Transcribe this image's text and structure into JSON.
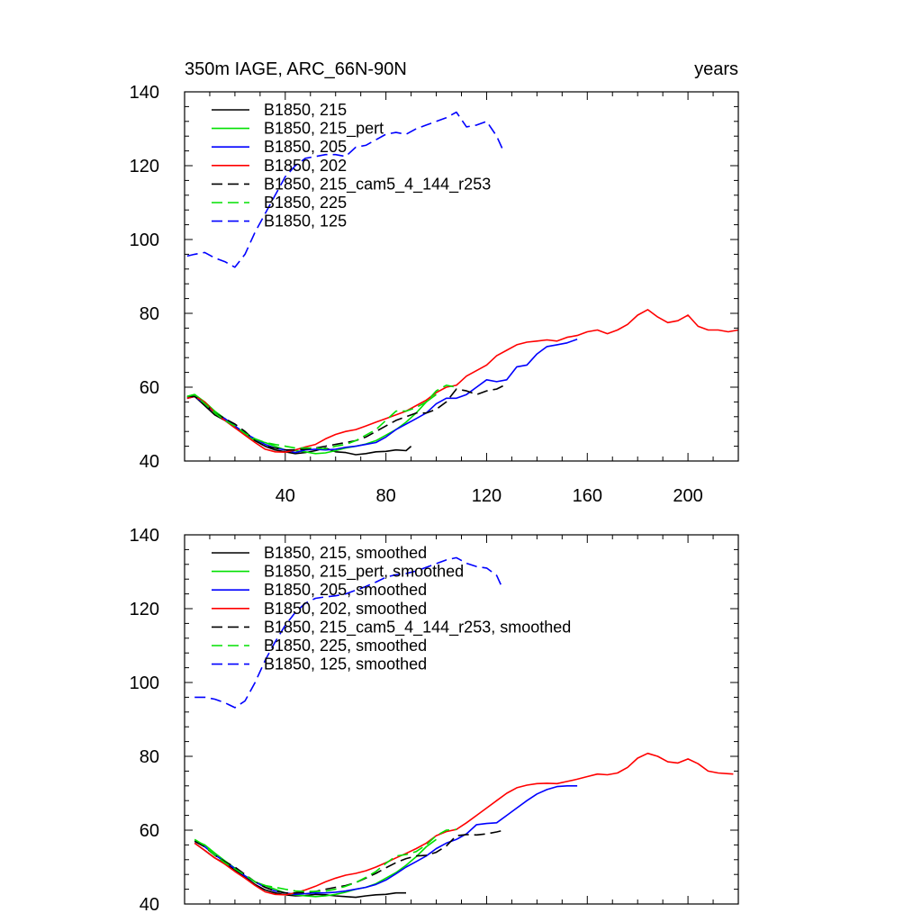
{
  "chart_data": [
    {
      "type": "line",
      "title_left": "350m IAGE, ARC_66N-90N",
      "title_right": "years",
      "xlim": [
        0,
        220
      ],
      "ylim": [
        40,
        140
      ],
      "xticks": [
        40,
        80,
        120,
        160,
        200
      ],
      "yticks": [
        40,
        60,
        80,
        100,
        120,
        140
      ],
      "show_xtick_labels": true,
      "series": [
        {
          "name": "B1850, 215",
          "color": "#000000",
          "dash": "solid",
          "x": [
            1,
            4,
            8,
            12,
            16,
            20,
            24,
            28,
            32,
            36,
            40,
            44,
            48,
            52,
            56,
            60,
            64,
            68,
            72,
            76,
            80,
            84,
            88,
            90
          ],
          "y": [
            57,
            57.5,
            55,
            52.5,
            51,
            49,
            47.5,
            45.5,
            44,
            43,
            42.5,
            42,
            42.3,
            42.8,
            43.5,
            42.5,
            42.3,
            41.7,
            42,
            42.5,
            42.6,
            43,
            42.8,
            44
          ]
        },
        {
          "name": "B1850, 215_pert",
          "color": "#00e000",
          "dash": "solid",
          "x": [
            1,
            4,
            8,
            12,
            16,
            20,
            24,
            28,
            32,
            36,
            40,
            44,
            48,
            52,
            56,
            60,
            64,
            68,
            72,
            76,
            80,
            84,
            88,
            92,
            96,
            100
          ],
          "y": [
            57.5,
            58,
            56,
            53.5,
            51.5,
            49.5,
            47.5,
            45.5,
            45,
            44,
            43,
            42.8,
            42.5,
            42,
            42.2,
            42.8,
            43.5,
            44,
            44.6,
            45.5,
            47,
            48.5,
            50.5,
            53,
            56,
            58
          ]
        },
        {
          "name": "B1850, 205",
          "color": "#0000ff",
          "dash": "solid",
          "x": [
            1,
            4,
            8,
            12,
            16,
            20,
            24,
            28,
            32,
            36,
            40,
            44,
            48,
            52,
            56,
            60,
            64,
            68,
            72,
            76,
            80,
            84,
            88,
            92,
            96,
            100,
            104,
            108,
            112,
            116,
            120,
            124,
            128,
            132,
            136,
            140,
            144,
            148,
            152,
            156
          ],
          "y": [
            57,
            57.5,
            55.5,
            53,
            51.5,
            49.5,
            47.5,
            46,
            44.5,
            43.5,
            43,
            42.3,
            43,
            43.2,
            43,
            43.2,
            43.7,
            44,
            44.5,
            45,
            46.5,
            48.5,
            50,
            51.5,
            53,
            55.5,
            57,
            57,
            58,
            60,
            62,
            61.5,
            62,
            65.5,
            66,
            69,
            71,
            71.5,
            72,
            73
          ]
        },
        {
          "name": "B1850, 202",
          "color": "#ff0000",
          "dash": "solid",
          "x": [
            1,
            4,
            8,
            12,
            16,
            20,
            24,
            28,
            32,
            36,
            40,
            44,
            48,
            52,
            56,
            60,
            64,
            68,
            72,
            76,
            80,
            84,
            88,
            92,
            96,
            100,
            104,
            108,
            112,
            116,
            120,
            124,
            128,
            132,
            136,
            140,
            144,
            148,
            152,
            156,
            160,
            164,
            168,
            172,
            176,
            180,
            184,
            188,
            192,
            196,
            200,
            204,
            208,
            212,
            216,
            220
          ],
          "y": [
            57,
            57.5,
            56,
            53,
            51,
            49,
            47,
            45,
            43.2,
            42.5,
            42.4,
            43,
            43.8,
            44.5,
            46,
            47.2,
            48,
            48.5,
            49.5,
            50.5,
            51.5,
            52.5,
            53.5,
            55,
            56.5,
            58.5,
            60,
            60.5,
            63,
            64.5,
            66,
            68.5,
            70,
            71.5,
            72.2,
            72.5,
            72.8,
            72.5,
            73.5,
            74,
            75,
            75.5,
            74.5,
            75.5,
            77,
            79.5,
            81,
            79,
            77.5,
            78,
            79.5,
            76.5,
            75.5,
            75.5,
            75,
            75.5
          ]
        },
        {
          "name": "B1850, 215_cam5_4_144_r253",
          "color": "#000000",
          "dash": "dashed",
          "x": [
            1,
            4,
            8,
            12,
            16,
            20,
            24,
            28,
            32,
            36,
            40,
            44,
            48,
            52,
            56,
            60,
            64,
            68,
            72,
            76,
            80,
            84,
            88,
            92,
            96,
            100,
            104,
            108,
            112,
            116,
            120,
            124,
            127
          ],
          "y": [
            57.5,
            57.5,
            55.5,
            53,
            51.5,
            50,
            48,
            45.5,
            44,
            43.5,
            43,
            43,
            43.2,
            43.5,
            44,
            44.5,
            45,
            45.5,
            46.5,
            48,
            49.5,
            51,
            52,
            53,
            53,
            54,
            56,
            59.5,
            59,
            58,
            59,
            59.5,
            60.5
          ]
        },
        {
          "name": "B1850, 225",
          "color": "#00e000",
          "dash": "dashed",
          "x": [
            1,
            4,
            8,
            12,
            16,
            20,
            24,
            28,
            32,
            36,
            40,
            44,
            48,
            52,
            56,
            60,
            64,
            68,
            72,
            76,
            80,
            84,
            88,
            92,
            96,
            100,
            104,
            108
          ],
          "y": [
            57.5,
            58,
            55.5,
            53,
            51,
            49.5,
            47.5,
            46,
            45,
            44.5,
            44,
            43.5,
            43.5,
            43.5,
            43.3,
            44,
            44.5,
            45.5,
            47,
            48.5,
            51,
            53.5,
            53.5,
            54.5,
            56,
            59,
            60.5,
            60
          ]
        },
        {
          "name": "B1850, 125",
          "color": "#0000ff",
          "dash": "dashed",
          "x": [
            1,
            4,
            8,
            12,
            16,
            20,
            24,
            28,
            32,
            36,
            40,
            44,
            48,
            52,
            56,
            60,
            64,
            68,
            72,
            76,
            80,
            84,
            88,
            92,
            96,
            100,
            104,
            108,
            112,
            116,
            120,
            124,
            127
          ],
          "y": [
            95.5,
            96,
            96.5,
            95,
            94,
            92.5,
            96,
            102,
            107,
            112,
            117,
            120,
            122,
            122.5,
            123,
            123,
            122.5,
            125,
            125.5,
            127,
            128.5,
            129,
            128.5,
            130,
            131,
            132,
            133,
            134.5,
            130.5,
            131,
            132,
            128,
            123.5
          ]
        }
      ]
    },
    {
      "type": "line",
      "title_left": "",
      "title_right": "",
      "xlim": [
        0,
        220
      ],
      "ylim": [
        40,
        140
      ],
      "xticks": [
        40,
        80,
        120,
        160,
        200
      ],
      "yticks": [
        40,
        60,
        80,
        100,
        120,
        140
      ],
      "show_xtick_labels": false,
      "series": [
        {
          "name": "B1850, 215, smoothed",
          "color": "#000000",
          "dash": "solid",
          "x": [
            4,
            8,
            12,
            16,
            20,
            24,
            28,
            32,
            36,
            40,
            44,
            48,
            52,
            56,
            60,
            64,
            68,
            72,
            76,
            80,
            84,
            88
          ],
          "y": [
            56.5,
            54.5,
            52.5,
            51,
            49.2,
            47.3,
            45.3,
            43.8,
            43,
            42.5,
            42.2,
            42.3,
            42.6,
            42.5,
            42.2,
            42,
            41.8,
            42.2,
            42.5,
            42.6,
            43,
            43
          ]
        },
        {
          "name": "B1850, 215_pert, smoothed",
          "color": "#00e000",
          "dash": "solid",
          "x": [
            4,
            8,
            12,
            16,
            20,
            24,
            28,
            32,
            36,
            40,
            44,
            48,
            52,
            56,
            60,
            64,
            68,
            72,
            76,
            80,
            84,
            88,
            92,
            96,
            100
          ],
          "y": [
            57.2,
            56,
            53.8,
            51.7,
            49.7,
            47.6,
            46,
            45,
            44,
            43,
            42.5,
            42.2,
            42,
            42.2,
            42.6,
            43.2,
            44,
            44.5,
            45.5,
            47,
            48.5,
            50.5,
            52.8,
            55.5,
            57.5
          ]
        },
        {
          "name": "B1850, 205, smoothed",
          "color": "#0000ff",
          "dash": "solid",
          "x": [
            4,
            8,
            12,
            16,
            20,
            24,
            28,
            32,
            36,
            40,
            44,
            48,
            52,
            56,
            60,
            64,
            68,
            72,
            76,
            80,
            84,
            88,
            92,
            96,
            100,
            104,
            108,
            112,
            116,
            120,
            124,
            128,
            132,
            136,
            140,
            144,
            148,
            152,
            156
          ],
          "y": [
            57,
            55.5,
            53.3,
            51.5,
            49.6,
            47.6,
            46,
            44.5,
            43.5,
            43,
            42.6,
            42.8,
            43,
            43,
            43.2,
            43.5,
            44,
            44.5,
            45.3,
            46.5,
            48.2,
            50,
            51.5,
            53,
            55,
            56.5,
            57.5,
            59,
            61.5,
            61.8,
            62,
            64,
            66,
            68,
            69.8,
            71,
            71.8,
            72,
            72
          ]
        },
        {
          "name": "B1850, 202, smoothed",
          "color": "#ff0000",
          "dash": "solid",
          "x": [
            4,
            8,
            12,
            16,
            20,
            24,
            28,
            32,
            36,
            40,
            44,
            48,
            52,
            56,
            60,
            64,
            68,
            72,
            76,
            80,
            84,
            88,
            92,
            96,
            100,
            104,
            108,
            112,
            116,
            120,
            124,
            128,
            132,
            136,
            140,
            144,
            148,
            152,
            156,
            160,
            164,
            168,
            172,
            176,
            180,
            184,
            188,
            192,
            196,
            200,
            204,
            208,
            212,
            216,
            218
          ],
          "y": [
            56.5,
            54.5,
            52.5,
            50.8,
            48.8,
            47,
            45,
            43.3,
            42.6,
            42.5,
            43,
            43.8,
            44.8,
            46,
            47,
            47.8,
            48.3,
            49,
            50,
            51.2,
            52.5,
            53.7,
            55,
            56.5,
            58.5,
            59.6,
            60.2,
            62,
            64,
            66,
            68,
            70,
            71.5,
            72.2,
            72.6,
            72.7,
            72.6,
            73.2,
            73.8,
            74.5,
            75.2,
            75,
            75.5,
            77,
            79.5,
            80.8,
            80,
            78.5,
            78.2,
            79.3,
            78,
            76,
            75.5,
            75.3,
            75.2
          ]
        },
        {
          "name": "B1850, 215_cam5_4_144_r253, smoothed",
          "color": "#000000",
          "dash": "dashed",
          "x": [
            4,
            8,
            12,
            16,
            20,
            24,
            28,
            32,
            36,
            40,
            44,
            48,
            52,
            56,
            60,
            64,
            68,
            72,
            76,
            80,
            84,
            88,
            92,
            96,
            100,
            104,
            108,
            112,
            116,
            120,
            124,
            127
          ],
          "y": [
            57,
            55.5,
            53.2,
            51.5,
            50,
            48,
            46,
            44.5,
            43.5,
            43,
            43,
            43.1,
            43.4,
            44,
            44.5,
            45,
            45.8,
            47,
            48.3,
            49.8,
            51.2,
            52.3,
            53,
            53.2,
            54,
            55.7,
            58.5,
            58.8,
            58.7,
            59,
            59.5,
            60
          ]
        },
        {
          "name": "B1850, 225, smoothed",
          "color": "#00e000",
          "dash": "dashed",
          "x": [
            4,
            8,
            12,
            16,
            20,
            24,
            28,
            32,
            36,
            40,
            44,
            48,
            52,
            56,
            60,
            64,
            68,
            72,
            76,
            80,
            84,
            88,
            92,
            96,
            100,
            104,
            108
          ],
          "y": [
            57.5,
            55.8,
            53.2,
            51.2,
            49.5,
            47.8,
            46,
            45,
            44.5,
            44,
            43.5,
            43.4,
            43.4,
            43.5,
            44,
            44.8,
            45.8,
            47.2,
            48.8,
            51,
            53,
            53.4,
            54.2,
            56,
            58.5,
            60,
            60.2
          ]
        },
        {
          "name": "B1850, 125, smoothed",
          "color": "#0000ff",
          "dash": "dashed",
          "x": [
            4,
            8,
            12,
            16,
            20,
            24,
            28,
            32,
            36,
            40,
            44,
            48,
            52,
            56,
            60,
            64,
            68,
            72,
            76,
            80,
            84,
            88,
            92,
            96,
            100,
            104,
            108,
            112,
            116,
            120,
            124,
            126
          ],
          "y": [
            96,
            96,
            95.5,
            94.5,
            93.2,
            95,
            100,
            106,
            111,
            115.5,
            119,
            121.5,
            122.8,
            123.2,
            123.5,
            124,
            125,
            126,
            127.2,
            128.5,
            129.2,
            129.5,
            130.2,
            131.2,
            132.2,
            133.2,
            133.8,
            132.3,
            131.4,
            131,
            129,
            126
          ]
        }
      ]
    }
  ]
}
